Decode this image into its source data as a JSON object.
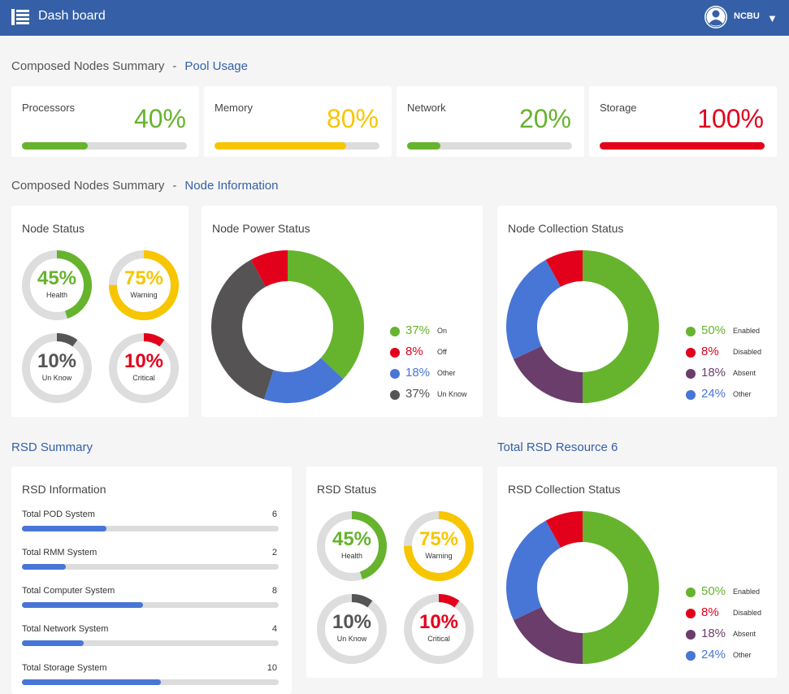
{
  "header": {
    "title": "Dash board",
    "username": "NCBU",
    "menu_icon": "menu-list-icon",
    "user_icon": "user-avatar-icon",
    "caret_icon": "caret-down-icon",
    "bg_color": "#3560a8"
  },
  "pool_section": {
    "prefix": "Composed Nodes Summary",
    "separator": "-",
    "link": "Pool Usage"
  },
  "pool_usage": [
    {
      "label": "Processors",
      "value": "40%",
      "fraction": 0.4,
      "color": "#66b32e"
    },
    {
      "label": "Memory",
      "value": "80%",
      "fraction": 0.8,
      "color": "#f7c600"
    },
    {
      "label": "Network",
      "value": "20%",
      "fraction": 0.2,
      "color": "#66b32e"
    },
    {
      "label": "Storage",
      "value": "100%",
      "fraction": 1.0,
      "color": "#e3001b"
    }
  ],
  "node_section": {
    "prefix": "Composed Nodes Summary",
    "separator": "-",
    "link": "Node Information"
  },
  "node_status": {
    "title": "Node Status",
    "rings": [
      {
        "value": "45%",
        "fraction": 0.45,
        "label": "Health",
        "color": "#66b32e"
      },
      {
        "value": "75%",
        "fraction": 0.75,
        "label": "Warning",
        "color": "#f7c600"
      },
      {
        "value": "10%",
        "fraction": 0.1,
        "label": "Un Know",
        "color": "#555555"
      },
      {
        "value": "10%",
        "fraction": 0.1,
        "label": "Critical",
        "color": "#e3001b"
      }
    ]
  },
  "node_power": {
    "title": "Node Power Status",
    "slices": [
      {
        "value": 37,
        "pct": "37%",
        "label": "On",
        "color": "#66b32e"
      },
      {
        "value": 18,
        "pct": "18%",
        "label": "Other",
        "color": "#4876d6"
      },
      {
        "value": 37,
        "pct": "37%",
        "label": "Un Know",
        "color": "#555353"
      },
      {
        "value": 8,
        "pct": "8%",
        "label": "Off",
        "color": "#e3001b"
      }
    ],
    "legend": [
      {
        "pct": "37%",
        "label": "On",
        "color": "#66b32e"
      },
      {
        "pct": "8%",
        "label": "Off",
        "color": "#e3001b"
      },
      {
        "pct": "18%",
        "label": "Other",
        "color": "#4876d6"
      },
      {
        "pct": "37%",
        "label": "Un Know",
        "color": "#555353"
      }
    ]
  },
  "node_collection": {
    "title": "Node Collection Status",
    "slices": [
      {
        "value": 50,
        "label": "Enabled",
        "color": "#66b32e"
      },
      {
        "value": 18,
        "label": "Absent",
        "color": "#6b3d6b"
      },
      {
        "value": 24,
        "label": "Other",
        "color": "#4876d6"
      },
      {
        "value": 8,
        "label": "Disabled",
        "color": "#e3001b"
      }
    ],
    "legend": [
      {
        "pct": "50%",
        "label": "Enabled",
        "color": "#66b32e"
      },
      {
        "pct": "8%",
        "label": "Disabled",
        "color": "#e3001b"
      },
      {
        "pct": "18%",
        "label": "Absent",
        "color": "#6b3d6b"
      },
      {
        "pct": "24%",
        "label": "Other",
        "color": "#4876d6"
      }
    ]
  },
  "rsd_summary_title": "RSD Summary",
  "total_rsd_title": "Total RSD Resource 6",
  "rsd_info": {
    "title": "RSD Information",
    "rows": [
      {
        "label": "Total POD System",
        "count": "6",
        "fraction": 0.33
      },
      {
        "label": "Total RMM System",
        "count": "2",
        "fraction": 0.17
      },
      {
        "label": "Total Computer System",
        "count": "8",
        "fraction": 0.47
      },
      {
        "label": "Total Network System",
        "count": "4",
        "fraction": 0.24
      },
      {
        "label": "Total Storage System",
        "count": "10",
        "fraction": 0.54
      }
    ]
  },
  "rsd_status": {
    "title": "RSD Status",
    "rings": [
      {
        "value": "45%",
        "fraction": 0.45,
        "label": "Health",
        "color": "#66b32e"
      },
      {
        "value": "75%",
        "fraction": 0.75,
        "label": "Warning",
        "color": "#f7c600"
      },
      {
        "value": "10%",
        "fraction": 0.1,
        "label": "Un Know",
        "color": "#555555"
      },
      {
        "value": "10%",
        "fraction": 0.1,
        "label": "Critical",
        "color": "#e3001b"
      }
    ]
  },
  "rsd_collection": {
    "title": "RSD Collection Status",
    "slices": [
      {
        "value": 50,
        "label": "Enabled",
        "color": "#66b32e"
      },
      {
        "value": 18,
        "label": "Absent",
        "color": "#6b3d6b"
      },
      {
        "value": 24,
        "label": "Other",
        "color": "#4876d6"
      },
      {
        "value": 8,
        "label": "Disabled",
        "color": "#e3001b"
      }
    ],
    "legend": [
      {
        "pct": "50%",
        "label": "Enabled",
        "color": "#66b32e"
      },
      {
        "pct": "8%",
        "label": "Disabled",
        "color": "#e3001b"
      },
      {
        "pct": "18%",
        "label": "Absent",
        "color": "#6b3d6b"
      },
      {
        "pct": "24%",
        "label": "Other",
        "color": "#4876d6"
      }
    ]
  }
}
